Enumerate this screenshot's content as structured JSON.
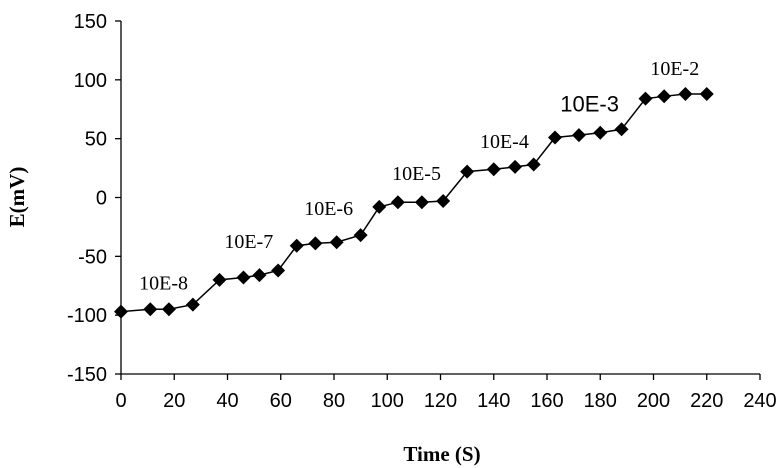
{
  "chart_data": {
    "type": "line",
    "title": "",
    "xlabel": "Time (S)",
    "ylabel": "E(mV)",
    "xlim": [
      0,
      240
    ],
    "ylim": [
      -150,
      150
    ],
    "x_ticks": [
      0,
      20,
      40,
      60,
      80,
      100,
      120,
      140,
      160,
      180,
      200,
      220,
      240
    ],
    "y_ticks": [
      -150,
      -100,
      -50,
      0,
      50,
      100,
      150
    ],
    "grid": false,
    "legend": "none",
    "series": [
      {
        "marker": "diamond",
        "color": "#000000",
        "points": [
          {
            "x": 0,
            "y": -97
          },
          {
            "x": 11,
            "y": -95
          },
          {
            "x": 18,
            "y": -95
          },
          {
            "x": 27,
            "y": -91
          },
          {
            "x": 37,
            "y": -70
          },
          {
            "x": 46,
            "y": -68
          },
          {
            "x": 52,
            "y": -66
          },
          {
            "x": 59,
            "y": -62
          },
          {
            "x": 66,
            "y": -41
          },
          {
            "x": 73,
            "y": -39
          },
          {
            "x": 81,
            "y": -38
          },
          {
            "x": 90,
            "y": -32
          },
          {
            "x": 97,
            "y": -8
          },
          {
            "x": 104,
            "y": -4
          },
          {
            "x": 113,
            "y": -4
          },
          {
            "x": 121,
            "y": -3
          },
          {
            "x": 130,
            "y": 22
          },
          {
            "x": 140,
            "y": 24
          },
          {
            "x": 148,
            "y": 26
          },
          {
            "x": 155,
            "y": 28
          },
          {
            "x": 163,
            "y": 51
          },
          {
            "x": 172,
            "y": 53
          },
          {
            "x": 180,
            "y": 55
          },
          {
            "x": 188,
            "y": 58
          },
          {
            "x": 197,
            "y": 84
          },
          {
            "x": 204,
            "y": 86
          },
          {
            "x": 212,
            "y": 88
          },
          {
            "x": 220,
            "y": 88
          }
        ]
      }
    ],
    "annotations": [
      {
        "text": "10E-8",
        "x": 16,
        "y": -78,
        "style": "serif"
      },
      {
        "text": "10E-7",
        "x": 48,
        "y": -43,
        "style": "serif"
      },
      {
        "text": "10E-6",
        "x": 78,
        "y": -15,
        "style": "serif"
      },
      {
        "text": "10E-5",
        "x": 111,
        "y": 15,
        "style": "serif"
      },
      {
        "text": "10E-4",
        "x": 144,
        "y": 42,
        "style": "serif"
      },
      {
        "text": "10E-3",
        "x": 176,
        "y": 73,
        "style": "sans"
      },
      {
        "text": "10E-2",
        "x": 208,
        "y": 104,
        "style": "serif"
      }
    ]
  }
}
